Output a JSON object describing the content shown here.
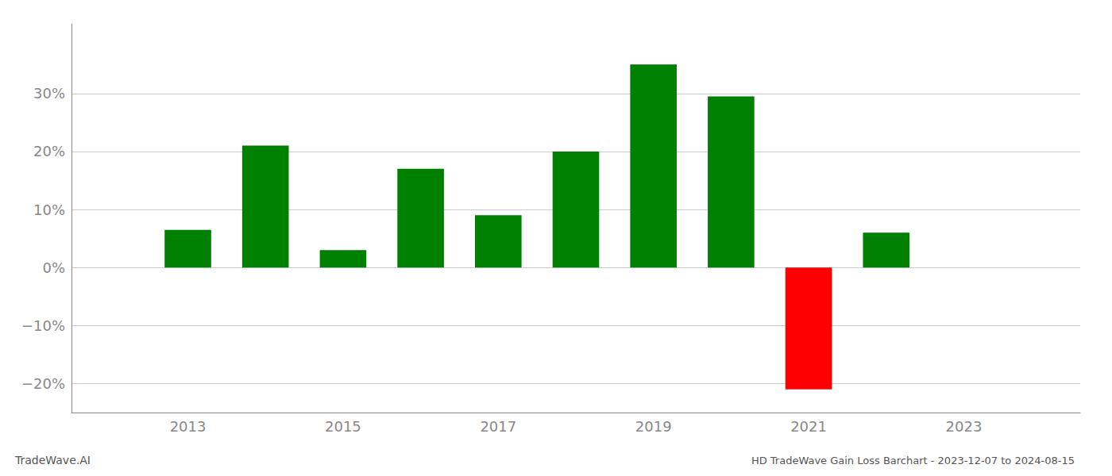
{
  "chart_data": {
    "type": "bar",
    "title": "HD TradeWave Gain Loss Barchart - 2023-12-07 to 2024-08-15",
    "annotations": [
      "TradeWave.AI"
    ],
    "x": [
      2013,
      2014,
      2015,
      2016,
      2017,
      2018,
      2019,
      2020,
      2021,
      2022
    ],
    "values": [
      6.5,
      21.0,
      3.0,
      17.0,
      9.0,
      20.0,
      35.0,
      29.5,
      -21.0,
      6.0
    ],
    "colors": [
      "#008000",
      "#008000",
      "#008000",
      "#008000",
      "#008000",
      "#008000",
      "#008000",
      "#008000",
      "#ff0000",
      "#008000"
    ],
    "xlim": [
      2011.5,
      2024.5
    ],
    "xticks": [
      2013,
      2015,
      2017,
      2019,
      2021,
      2023
    ],
    "ylim": [
      -25,
      42
    ],
    "yticks": [
      {
        "value": -20,
        "label": "−20%"
      },
      {
        "value": -10,
        "label": "−10%"
      },
      {
        "value": 0,
        "label": "0%"
      },
      {
        "value": 10,
        "label": "10%"
      },
      {
        "value": 20,
        "label": "20%"
      },
      {
        "value": 30,
        "label": "30%"
      }
    ],
    "grid": true
  }
}
